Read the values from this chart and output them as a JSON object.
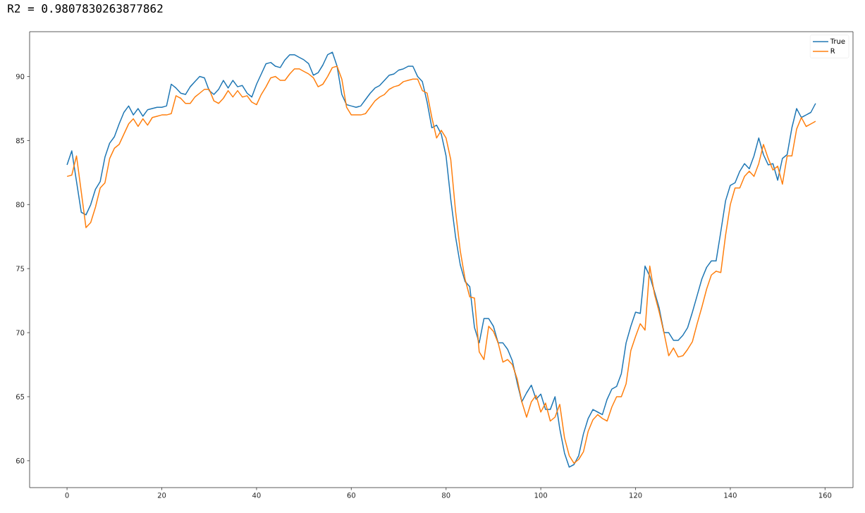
{
  "chart_data": {
    "type": "line",
    "title": "R2 =  0.9807830263877862",
    "x": [
      0,
      1,
      2,
      3,
      4,
      5,
      6,
      7,
      8,
      9,
      10,
      11,
      12,
      13,
      14,
      15,
      16,
      17,
      18,
      19,
      20,
      21,
      22,
      23,
      24,
      25,
      26,
      27,
      28,
      29,
      30,
      31,
      32,
      33,
      34,
      35,
      36,
      37,
      38,
      39,
      40,
      41,
      42,
      43,
      44,
      45,
      46,
      47,
      48,
      49,
      50,
      51,
      52,
      53,
      54,
      55,
      56,
      57,
      58,
      59,
      60,
      61,
      62,
      63,
      64,
      65,
      66,
      67,
      68,
      69,
      70,
      71,
      72,
      73,
      74,
      75,
      76,
      77,
      78,
      79,
      80,
      81,
      82,
      83,
      84,
      85,
      86,
      87,
      88,
      89,
      90,
      91,
      92,
      93,
      94,
      95,
      96,
      97,
      98,
      99,
      100,
      101,
      102,
      103,
      104,
      105,
      106,
      107,
      108,
      109,
      110,
      111,
      112,
      113,
      114,
      115,
      116,
      117,
      118,
      119,
      120,
      121,
      122,
      123,
      124,
      125,
      126,
      127,
      128,
      129,
      130,
      131,
      132,
      133,
      134,
      135,
      136,
      137,
      138,
      139,
      140,
      141,
      142,
      143,
      144,
      145,
      146,
      147,
      148,
      149,
      150,
      151,
      152,
      153,
      154,
      155,
      156,
      157,
      158
    ],
    "series": [
      {
        "name": "True",
        "color": "#1f77b4",
        "values": [
          83.1,
          84.2,
          81.8,
          79.4,
          79.2,
          80.0,
          81.2,
          81.8,
          83.7,
          84.8,
          85.3,
          86.3,
          87.2,
          87.7,
          87.0,
          87.5,
          86.9,
          87.4,
          87.5,
          87.6,
          87.6,
          87.7,
          89.4,
          89.1,
          88.7,
          88.6,
          89.2,
          89.6,
          90.0,
          89.9,
          88.9,
          88.6,
          89.0,
          89.7,
          89.1,
          89.7,
          89.2,
          89.3,
          88.7,
          88.4,
          89.4,
          90.2,
          91.0,
          91.1,
          90.8,
          90.7,
          91.3,
          91.7,
          91.7,
          91.5,
          91.3,
          91.0,
          90.1,
          90.3,
          90.9,
          91.7,
          91.9,
          90.8,
          88.6,
          87.8,
          87.7,
          87.6,
          87.7,
          88.2,
          88.7,
          89.1,
          89.3,
          89.7,
          90.1,
          90.2,
          90.5,
          90.6,
          90.8,
          90.8,
          90.0,
          89.6,
          88.0,
          86.0,
          86.2,
          85.5,
          83.8,
          80.4,
          77.5,
          75.3,
          74.0,
          73.6,
          70.4,
          69.2,
          71.1,
          71.1,
          70.5,
          69.2,
          69.2,
          68.7,
          67.8,
          66.1,
          64.6,
          65.3,
          65.9,
          64.8,
          65.2,
          64.0,
          64.0,
          65.0,
          62.5,
          60.6,
          59.5,
          59.7,
          60.4,
          62.1,
          63.3,
          64.0,
          63.8,
          63.6,
          64.8,
          65.6,
          65.8,
          66.8,
          69.2,
          70.5,
          71.6,
          71.5,
          75.2,
          74.4,
          73.2,
          71.9,
          70.0,
          70.0,
          69.4,
          69.4,
          69.8,
          70.4,
          71.6,
          72.9,
          74.2,
          75.1,
          75.6,
          75.6,
          77.9,
          80.3,
          81.5,
          81.7,
          82.6,
          83.2,
          82.8,
          83.8,
          85.2,
          83.9,
          83.1,
          83.2,
          81.9,
          83.6,
          83.9,
          86.0,
          87.5,
          86.8,
          87.0,
          87.2,
          87.9
        ]
      },
      {
        "name": "R",
        "color": "#ff7f0e",
        "values": [
          82.2,
          82.3,
          83.8,
          81.0,
          78.2,
          78.6,
          79.8,
          81.3,
          81.7,
          83.6,
          84.4,
          84.7,
          85.5,
          86.3,
          86.7,
          86.1,
          86.7,
          86.2,
          86.8,
          86.9,
          87.0,
          87.0,
          87.1,
          88.5,
          88.3,
          87.9,
          87.9,
          88.4,
          88.7,
          89.0,
          89.0,
          88.1,
          87.9,
          88.3,
          88.9,
          88.4,
          88.9,
          88.4,
          88.5,
          88.0,
          87.8,
          88.6,
          89.2,
          89.9,
          90.0,
          89.7,
          89.7,
          90.2,
          90.6,
          90.6,
          90.4,
          90.2,
          89.9,
          89.2,
          89.4,
          90.0,
          90.7,
          90.8,
          89.8,
          87.6,
          87.0,
          87.0,
          87.0,
          87.1,
          87.6,
          88.1,
          88.4,
          88.6,
          89.0,
          89.2,
          89.3,
          89.6,
          89.7,
          89.8,
          89.8,
          88.9,
          88.7,
          86.8,
          85.2,
          85.8,
          85.2,
          83.5,
          79.5,
          76.4,
          74.2,
          72.8,
          72.7,
          68.5,
          67.9,
          70.5,
          70.1,
          69.2,
          67.7,
          67.9,
          67.5,
          66.4,
          64.6,
          63.4,
          64.6,
          65.1,
          63.8,
          64.5,
          63.1,
          63.4,
          64.4,
          61.8,
          60.4,
          59.8,
          60.1,
          60.7,
          62.3,
          63.2,
          63.6,
          63.3,
          63.1,
          64.2,
          65.0,
          65.0,
          66.0,
          68.6,
          69.7,
          70.7,
          70.2,
          75.2,
          73.0,
          71.6,
          70.0,
          68.2,
          68.8,
          68.1,
          68.2,
          68.7,
          69.3,
          70.7,
          72.0,
          73.4,
          74.5,
          74.8,
          74.7,
          77.6,
          80.0,
          81.3,
          81.3,
          82.2,
          82.6,
          82.2,
          83.2,
          84.7,
          83.6,
          82.7,
          83.0,
          81.6,
          83.8,
          83.8,
          85.9,
          86.8,
          86.1,
          86.3,
          86.5
        ]
      }
    ],
    "xlim": [
      -7.9,
      165.9
    ],
    "ylim": [
      57.9,
      93.5
    ],
    "xticks": [
      0,
      20,
      40,
      60,
      80,
      100,
      120,
      140,
      160
    ],
    "yticks": [
      60,
      65,
      70,
      75,
      80,
      85,
      90
    ],
    "legend": "top right"
  }
}
